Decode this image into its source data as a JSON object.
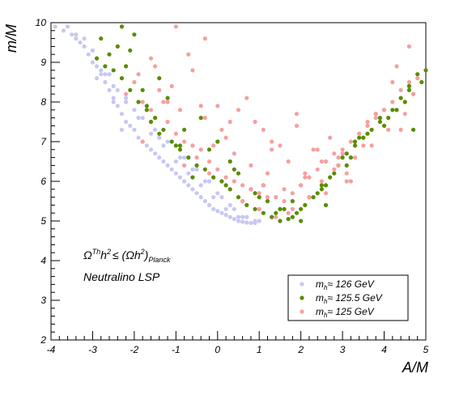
{
  "chart_data": {
    "type": "scatter",
    "title": "",
    "xlabel": "A/M",
    "ylabel": "m/M",
    "xlim": [
      -4,
      5
    ],
    "ylim": [
      2,
      10
    ],
    "x_ticks": [
      "-4",
      "-3",
      "-2",
      "-1",
      "0",
      "1",
      "2",
      "3",
      "4",
      "5"
    ],
    "y_ticks": [
      "2",
      "3",
      "4",
      "5",
      "6",
      "7",
      "8",
      "9",
      "10"
    ],
    "grid": false,
    "legend_position": "bottom-right",
    "annotations": {
      "constraint": {
        "base": "Ω",
        "sup1": "Th",
        "mid": "h",
        "sup2": "2",
        "le": "≤ (Ωh",
        "sup3": "2",
        "close": ")",
        "sub": "Planck"
      },
      "lsp": "Neutralino LSP"
    },
    "series": [
      {
        "name_main": "m",
        "name_sub": "h",
        "name_rest": "≈ 126 GeV",
        "color": "#c8c8f2",
        "x": [
          -3.9,
          -3.7,
          -3.5,
          -3.4,
          -3.3,
          -3.2,
          -3.6,
          -3.1,
          -3.0,
          -2.9,
          -2.8,
          -2.7,
          -3.2,
          -3.0,
          -2.6,
          -2.5,
          -2.4,
          -2.8,
          -2.3,
          -2.2,
          -2.1,
          -2.0,
          -1.9,
          -1.8,
          -1.7,
          -1.6,
          -1.5,
          -1.4,
          -1.3,
          -1.2,
          -1.1,
          -1.0,
          -0.9,
          -0.8,
          -0.7,
          -0.6,
          -0.5,
          -0.4,
          -0.3,
          -0.2,
          -0.1,
          0.0,
          0.1,
          0.2,
          0.3,
          0.4,
          0.5,
          0.6,
          0.7,
          0.8,
          0.9,
          1.0,
          -2.5,
          -2.2,
          -1.9,
          -1.6,
          -1.3,
          -1.0,
          -0.7,
          -0.4,
          -0.1,
          0.2,
          0.5,
          -2.7,
          -2.4,
          -2.0,
          -1.5,
          -1.2,
          -0.8,
          -0.5,
          -0.2,
          0.1,
          0.4,
          0.7,
          -3.4,
          -3.0,
          -2.6,
          -2.2,
          -1.8,
          -1.4,
          -0.9,
          -0.6,
          -0.3,
          0.0,
          0.3,
          0.6,
          0.9,
          -2.3,
          -2.9,
          -2.5
        ],
        "y": [
          9.9,
          9.8,
          9.7,
          9.6,
          9.5,
          9.4,
          9.9,
          9.2,
          9.0,
          8.9,
          8.7,
          8.5,
          9.6,
          9.3,
          8.3,
          8.1,
          7.9,
          8.8,
          7.7,
          7.5,
          7.4,
          7.3,
          7.1,
          7.0,
          6.9,
          6.8,
          6.7,
          6.6,
          6.5,
          6.4,
          6.3,
          6.2,
          6.1,
          6.0,
          5.9,
          5.8,
          5.7,
          5.6,
          5.5,
          5.4,
          5.3,
          5.25,
          5.2,
          5.15,
          5.1,
          5.05,
          5.0,
          4.98,
          4.96,
          4.95,
          4.95,
          5.0,
          8.4,
          8.0,
          7.6,
          7.2,
          6.9,
          6.5,
          6.2,
          5.9,
          5.6,
          5.3,
          5.1,
          8.7,
          8.3,
          7.8,
          7.3,
          7.0,
          6.6,
          6.3,
          6.0,
          5.6,
          5.3,
          5.1,
          9.7,
          9.3,
          8.7,
          8.1,
          7.6,
          7.1,
          6.6,
          6.3,
          6.0,
          5.7,
          5.4,
          5.1,
          5.0,
          7.3,
          8.6,
          8.0
        ]
      },
      {
        "name_main": "m",
        "name_sub": "h",
        "name_rest": "≈ 125.5 GeV",
        "color": "#5a8c00",
        "x": [
          -2.9,
          -2.7,
          -2.5,
          -2.3,
          -2.1,
          -1.9,
          -1.7,
          -1.5,
          -1.3,
          -1.1,
          -0.9,
          -0.7,
          -0.5,
          -0.3,
          -0.1,
          0.1,
          0.3,
          0.5,
          0.7,
          0.9,
          1.1,
          1.3,
          1.5,
          1.7,
          1.9,
          2.1,
          2.3,
          2.5,
          2.7,
          2.9,
          3.1,
          3.3,
          3.5,
          3.7,
          3.9,
          4.1,
          4.3,
          4.5,
          4.7,
          4.9,
          -2.8,
          -2.4,
          -2.0,
          -1.6,
          -1.2,
          -0.8,
          -0.4,
          0.0,
          0.4,
          0.8,
          1.2,
          1.6,
          2.0,
          2.4,
          2.8,
          3.2,
          3.6,
          4.0,
          4.4,
          4.8,
          -2.2,
          -1.8,
          -1.4,
          -1.0,
          -0.6,
          -0.2,
          0.2,
          0.6,
          1.0,
          1.4,
          1.8,
          2.2,
          2.6,
          3.0,
          3.4,
          3.8,
          4.2,
          4.6,
          5.0,
          -2.3,
          -2.1,
          -1.4,
          0.3,
          0.9,
          1.5,
          2.0,
          2.6,
          3.3,
          4.0,
          4.6,
          -2.6,
          -1.7,
          -0.9,
          0.5,
          1.1,
          1.8,
          2.5,
          3.1,
          3.9,
          4.7
        ],
        "y": [
          9.1,
          8.9,
          8.8,
          8.6,
          8.3,
          8.0,
          7.8,
          7.6,
          7.3,
          7.0,
          6.8,
          6.6,
          6.4,
          6.3,
          6.1,
          6.0,
          5.8,
          5.6,
          5.4,
          5.3,
          5.2,
          5.1,
          5.0,
          5.05,
          5.2,
          5.4,
          5.6,
          5.8,
          6.1,
          6.4,
          6.7,
          6.9,
          7.1,
          7.3,
          7.5,
          7.6,
          7.8,
          8.0,
          8.2,
          8.5,
          9.6,
          9.4,
          9.7,
          7.5,
          8.1,
          7.3,
          7.6,
          7.0,
          6.3,
          5.8,
          5.5,
          5.3,
          5.3,
          5.7,
          6.2,
          6.6,
          7.2,
          7.8,
          8.1,
          8.7,
          8.9,
          8.3,
          7.2,
          6.9,
          6.1,
          6.8,
          5.9,
          5.5,
          5.6,
          5.2,
          5.1,
          5.6,
          5.9,
          6.6,
          7.1,
          7.7,
          7.8,
          8.4,
          8.8,
          9.9,
          9.3,
          8.6,
          6.5,
          5.7,
          5.3,
          5.0,
          5.4,
          7.0,
          7.4,
          8.3,
          9.2,
          7.9,
          6.9,
          6.2,
          5.9,
          5.5,
          5.9,
          6.4,
          7.6,
          7.3
        ]
      },
      {
        "name_main": "m",
        "name_sub": "h",
        "name_rest": "≈ 125 GeV",
        "color": "#f5a0a0",
        "x": [
          -2.2,
          -2.0,
          -1.8,
          -1.6,
          -1.4,
          -1.2,
          -1.0,
          -0.8,
          -0.6,
          -0.4,
          -0.2,
          0.0,
          0.2,
          0.4,
          0.6,
          0.8,
          1.0,
          1.2,
          1.4,
          1.6,
          1.8,
          2.0,
          2.2,
          2.4,
          2.6,
          2.8,
          3.0,
          3.2,
          3.4,
          3.6,
          3.8,
          4.0,
          4.2,
          4.4,
          4.6,
          4.8,
          -1.9,
          -1.5,
          -1.1,
          -0.7,
          -0.3,
          0.1,
          0.5,
          0.9,
          1.3,
          1.7,
          2.1,
          2.5,
          2.9,
          3.3,
          3.7,
          4.1,
          4.5,
          -1.3,
          -0.9,
          -0.5,
          0.0,
          0.4,
          0.8,
          1.2,
          1.6,
          2.0,
          2.4,
          2.8,
          3.2,
          -0.6,
          -0.3,
          0.3,
          0.7,
          1.1,
          1.5,
          1.9,
          2.3,
          2.7,
          3.1,
          3.5,
          -1.6,
          -1.2,
          -0.2,
          0.6,
          1.0,
          1.4,
          1.8,
          2.2,
          2.6,
          3.0,
          3.4,
          3.8,
          4.2,
          4.6,
          -1.0,
          -0.4,
          1.3,
          1.9,
          2.5,
          3.1,
          4.4,
          -0.8,
          0.2,
          1.1,
          2.1,
          2.9,
          4.7,
          -1.8,
          -0.1,
          1.7,
          3.6,
          4.3
        ],
        "y": [
          8.2,
          8.5,
          8.0,
          7.8,
          8.3,
          7.5,
          7.2,
          7.0,
          6.9,
          6.8,
          6.5,
          6.3,
          6.1,
          6.0,
          5.9,
          5.8,
          5.7,
          5.6,
          5.6,
          5.5,
          5.7,
          5.9,
          6.1,
          6.3,
          6.5,
          6.7,
          6.8,
          7.0,
          7.2,
          7.5,
          7.6,
          7.8,
          8.0,
          8.3,
          8.5,
          8.6,
          8.7,
          8.9,
          8.4,
          9.2,
          7.6,
          7.3,
          7.8,
          7.5,
          6.8,
          6.5,
          6.2,
          6.0,
          6.4,
          6.6,
          6.9,
          7.3,
          7.7,
          8.0,
          7.8,
          6.6,
          7.9,
          6.7,
          6.4,
          6.2,
          5.8,
          5.9,
          6.8,
          6.3,
          6.0,
          8.8,
          9.6,
          7.5,
          8.1,
          7.3,
          6.9,
          7.4,
          6.8,
          7.1,
          6.2,
          6.9,
          9.1,
          8.0,
          6.2,
          5.5,
          5.3,
          5.1,
          5.3,
          5.6,
          5.7,
          6.7,
          7.2,
          7.7,
          8.5,
          9.4,
          9.9,
          7.9,
          7.0,
          7.7,
          6.5,
          6.0,
          7.3,
          6.4,
          7.1,
          5.9,
          6.1,
          6.6,
          8.2,
          7.0,
          6.9,
          5.2,
          7.4,
          8.9
        ]
      }
    ]
  }
}
